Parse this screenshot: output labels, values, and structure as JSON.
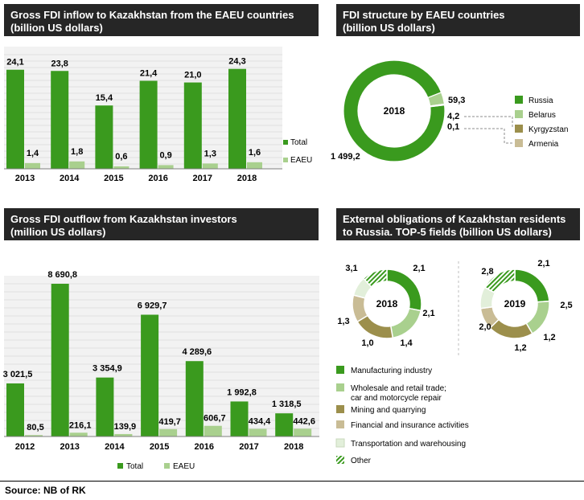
{
  "colors": {
    "total": "#3a9a1e",
    "eaeu": "#a9d08e",
    "russia": "#3a9a1e",
    "belarus": "#a9d08e",
    "kyrgyzstan": "#9c8f4c",
    "armenia": "#c9bc95",
    "manufacturing": "#3a9a1e",
    "wholesale": "#a9d08e",
    "mining": "#9c8f4c",
    "financial": "#c9bc95",
    "transport": "#e2efda",
    "other": "#3a9a1e",
    "header_bg": "#262626"
  },
  "panels": {
    "inflow": {
      "title_line1": "Gross  FDI inflow to Kazakhstan from the EAEU  countries",
      "title_line2": "(billion US dollars)"
    },
    "structure": {
      "title_line1": "FDI structure  by EAEU  countries",
      "title_line2": "(billion US dollars)"
    },
    "outflow": {
      "title_line1": "Gross  FDI outflow from Kazakhstan investors",
      "title_line2": "(million US dollars)"
    },
    "obligations": {
      "title_line1": "External obligations of Kazakhstan residents",
      "title_line2": "to Russia.  TOP-5 fields (billion US dollars)"
    }
  },
  "source": "Source: NB of RK",
  "chart_data": [
    {
      "id": "inflow",
      "type": "bar",
      "categories": [
        "2013",
        "2014",
        "2015",
        "2016",
        "2017",
        "2018"
      ],
      "series": [
        {
          "name": "Total",
          "values": [
            24.1,
            23.8,
            15.4,
            21.4,
            21.0,
            24.3
          ],
          "labels": [
            "24,1",
            "23,8",
            "15,4",
            "21,4",
            "21,0",
            "24,3"
          ],
          "color": "#3a9a1e"
        },
        {
          "name": "EAEU",
          "values": [
            1.4,
            1.8,
            0.6,
            0.9,
            1.3,
            1.6
          ],
          "labels": [
            "1,4",
            "1,8",
            "0,6",
            "0,9",
            "1,3",
            "1,6"
          ],
          "color": "#a9d08e"
        }
      ],
      "ylim": [
        0,
        26
      ],
      "legend": "right"
    },
    {
      "id": "structure",
      "type": "pie",
      "center_label": "2018",
      "slices": [
        {
          "name": "Russia",
          "value": 1499.2,
          "label": "1 499,2",
          "color": "#3a9a1e"
        },
        {
          "name": "Belarus",
          "value": 59.3,
          "label": "59,3",
          "color": "#a9d08e"
        },
        {
          "name": "Kyrgyzstan",
          "value": 4.2,
          "label": "4,2",
          "color": "#9c8f4c"
        },
        {
          "name": "Armenia",
          "value": 0.1,
          "label": "0,1",
          "color": "#c9bc95"
        }
      ],
      "legend": "right"
    },
    {
      "id": "outflow",
      "type": "bar",
      "categories": [
        "2012",
        "2013",
        "2014",
        "2015",
        "2016",
        "2017",
        "2018"
      ],
      "series": [
        {
          "name": "Total",
          "values": [
            3021.5,
            8690.8,
            3354.9,
            6929.7,
            4289.6,
            1992.8,
            1318.5
          ],
          "labels": [
            "3 021,5",
            "8 690,8",
            "3 354,9",
            "6 929,7",
            "4 289,6",
            "1 992,8",
            "1 318,5"
          ],
          "color": "#3a9a1e"
        },
        {
          "name": "EAEU",
          "values": [
            80.5,
            216.1,
            139.9,
            419.7,
            606.7,
            434.4,
            442.6
          ],
          "labels": [
            "80,5",
            "216,1",
            "139,9",
            "419,7",
            "606,7",
            "434,4",
            "442,6"
          ],
          "color": "#a9d08e"
        }
      ],
      "ylim": [
        0,
        9000
      ],
      "legend": "bottom"
    },
    {
      "id": "obligations",
      "type": "pie",
      "donuts": [
        {
          "center_label": "2018",
          "values": [
            3.1,
            2.1,
            2.1,
            1.4,
            1.0,
            1.3
          ],
          "labels": [
            "3,1",
            "2,1",
            "2,1",
            "1,4",
            "1,0",
            "1,3"
          ]
        },
        {
          "center_label": "2019",
          "values": [
            2.8,
            2.1,
            2.5,
            1.2,
            1.2,
            2.0
          ],
          "labels": [
            "2,8",
            "2,1",
            "2,5",
            "1,2",
            "1,2",
            "2,0"
          ]
        }
      ],
      "categories": [
        {
          "name": "Manufacturing industry",
          "color": "#3a9a1e"
        },
        {
          "name": "Wholesale and retail trade;",
          "name2": "car and motorcycle repair",
          "color": "#a9d08e"
        },
        {
          "name": "Mining  and quarrying",
          "color": "#9c8f4c"
        },
        {
          "name": "Financial and insurance activities",
          "color": "#c9bc95"
        },
        {
          "name": "Transportation and warehousing",
          "color": "#e2efda"
        },
        {
          "name": "Other",
          "color": "#3a9a1e",
          "pattern": "hatched"
        }
      ],
      "legend": "bottom"
    }
  ]
}
